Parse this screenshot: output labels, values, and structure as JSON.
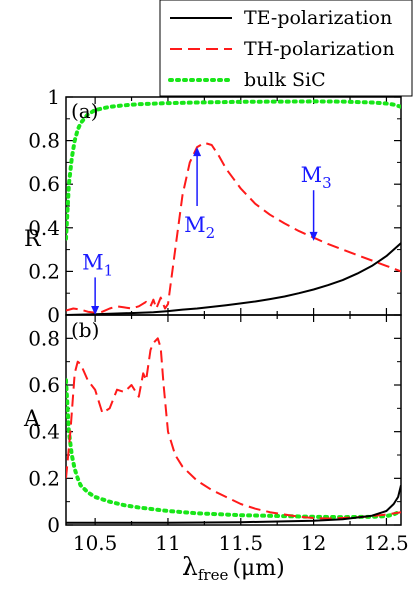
{
  "chart_data": [
    {
      "type": "line",
      "panel_label": "(a)",
      "xlim": [
        10.3,
        12.6
      ],
      "ylim": [
        0,
        1
      ],
      "ylabel": "R",
      "yticks": [
        "0",
        "0.2",
        "0.4",
        "0.6",
        "0.8",
        "1"
      ],
      "grid": false,
      "series": [
        {
          "name": "TE-polarization",
          "color": "#000000",
          "dash": "solid",
          "x": [
            10.3,
            10.5,
            10.7,
            10.9,
            11.0,
            11.1,
            11.2,
            11.3,
            11.4,
            11.5,
            11.6,
            11.7,
            11.8,
            11.9,
            12.0,
            12.1,
            12.2,
            12.3,
            12.4,
            12.5,
            12.6
          ],
          "y": [
            0.0,
            0.003,
            0.008,
            0.013,
            0.018,
            0.025,
            0.03,
            0.037,
            0.045,
            0.053,
            0.062,
            0.073,
            0.085,
            0.1,
            0.117,
            0.137,
            0.16,
            0.19,
            0.225,
            0.27,
            0.33
          ]
        },
        {
          "name": "TH-polarization",
          "color": "#ff1a1a",
          "dash": "long",
          "x": [
            10.3,
            10.35,
            10.4,
            10.45,
            10.5,
            10.55,
            10.6,
            10.65,
            10.7,
            10.75,
            10.8,
            10.85,
            10.88,
            10.9,
            10.92,
            10.95,
            10.98,
            11.0,
            11.05,
            11.1,
            11.15,
            11.2,
            11.25,
            11.3,
            11.35,
            11.4,
            11.5,
            11.6,
            11.7,
            11.8,
            11.9,
            12.0,
            12.1,
            12.2,
            12.3,
            12.4,
            12.5,
            12.6
          ],
          "y": [
            0.02,
            0.03,
            0.025,
            0.015,
            0.01,
            0.015,
            0.03,
            0.04,
            0.035,
            0.03,
            0.04,
            0.06,
            0.04,
            0.07,
            0.03,
            0.08,
            0.03,
            0.05,
            0.3,
            0.55,
            0.7,
            0.77,
            0.79,
            0.78,
            0.73,
            0.67,
            0.58,
            0.51,
            0.46,
            0.42,
            0.385,
            0.355,
            0.325,
            0.3,
            0.275,
            0.25,
            0.225,
            0.2
          ]
        },
        {
          "name": "bulk SiC",
          "color": "#19e619",
          "dash": "dotted",
          "x": [
            10.3,
            10.32,
            10.34,
            10.36,
            10.38,
            10.4,
            10.45,
            10.5,
            10.6,
            10.7,
            10.8,
            11.0,
            11.2,
            11.5,
            11.8,
            12.0,
            12.2,
            12.4,
            12.5,
            12.55,
            12.6
          ],
          "y": [
            0.35,
            0.6,
            0.72,
            0.8,
            0.85,
            0.88,
            0.92,
            0.94,
            0.955,
            0.962,
            0.967,
            0.972,
            0.975,
            0.978,
            0.979,
            0.98,
            0.979,
            0.975,
            0.97,
            0.965,
            0.955
          ]
        }
      ],
      "annotations": [
        {
          "text": "M",
          "sub": "1",
          "x": 10.5,
          "y": 0.2,
          "arrow_to": 0.0,
          "direction": "down"
        },
        {
          "text": "M",
          "sub": "2",
          "x": 11.2,
          "y": 0.5,
          "arrow_to": 0.77,
          "direction": "up"
        },
        {
          "text": "M",
          "sub": "3",
          "x": 12.0,
          "y": 0.6,
          "arrow_to": 0.34,
          "direction": "down"
        }
      ]
    },
    {
      "type": "line",
      "panel_label": "(b)",
      "xlim": [
        10.3,
        12.6
      ],
      "ylim": [
        0,
        0.9
      ],
      "ylabel": "A",
      "yticks": [
        "0",
        "0.2",
        "0.4",
        "0.6",
        "0.8"
      ],
      "xticks": [
        "10.5",
        "11",
        "11.5",
        "12",
        "12.5"
      ],
      "xlabel_main": "λ",
      "xlabel_sub": "free",
      "xlabel_unit": "(μm)",
      "grid": false,
      "series": [
        {
          "name": "TE-polarization",
          "color": "#000000",
          "dash": "solid",
          "x": [
            10.3,
            10.5,
            11.0,
            11.5,
            12.0,
            12.2,
            12.4,
            12.5,
            12.55,
            12.58,
            12.6
          ],
          "y": [
            0.01,
            0.01,
            0.01,
            0.012,
            0.018,
            0.025,
            0.04,
            0.06,
            0.09,
            0.12,
            0.17
          ]
        },
        {
          "name": "TH-polarization",
          "color": "#ff1a1a",
          "dash": "long",
          "x": [
            10.3,
            10.33,
            10.36,
            10.38,
            10.4,
            10.45,
            10.5,
            10.55,
            10.6,
            10.65,
            10.7,
            10.75,
            10.8,
            10.83,
            10.85,
            10.88,
            10.9,
            10.93,
            10.95,
            10.97,
            11.0,
            11.05,
            11.1,
            11.2,
            11.3,
            11.4,
            11.5,
            11.6,
            11.7,
            11.8,
            11.9,
            12.0,
            12.1,
            12.2,
            12.3,
            12.4,
            12.5,
            12.6
          ],
          "y": [
            0.2,
            0.4,
            0.65,
            0.7,
            0.69,
            0.62,
            0.58,
            0.48,
            0.5,
            0.58,
            0.57,
            0.6,
            0.55,
            0.65,
            0.62,
            0.75,
            0.78,
            0.8,
            0.76,
            0.6,
            0.4,
            0.3,
            0.25,
            0.19,
            0.15,
            0.12,
            0.09,
            0.07,
            0.055,
            0.045,
            0.035,
            0.03,
            0.028,
            0.03,
            0.033,
            0.038,
            0.045,
            0.055
          ]
        },
        {
          "name": "bulk SiC",
          "color": "#19e619",
          "dash": "dotted",
          "x": [
            10.3,
            10.32,
            10.34,
            10.36,
            10.38,
            10.4,
            10.45,
            10.5,
            10.6,
            10.7,
            10.8,
            11.0,
            11.2,
            11.5,
            11.8,
            12.0,
            12.2,
            12.4,
            12.5,
            12.55,
            12.6
          ],
          "y": [
            0.62,
            0.4,
            0.3,
            0.24,
            0.2,
            0.17,
            0.14,
            0.12,
            0.1,
            0.085,
            0.075,
            0.06,
            0.05,
            0.042,
            0.038,
            0.035,
            0.034,
            0.035,
            0.038,
            0.045,
            0.06
          ]
        }
      ]
    }
  ],
  "legend": {
    "placement": "top-right",
    "entries": [
      {
        "label": "TE-polarization",
        "color": "#000000",
        "dash": "solid"
      },
      {
        "label": "TH-polarization",
        "color": "#ff1a1a",
        "dash": "long"
      },
      {
        "label": "bulk SiC",
        "color": "#19e619",
        "dash": "dotted"
      }
    ]
  },
  "colors": {
    "annotation": "#1a1aff"
  }
}
